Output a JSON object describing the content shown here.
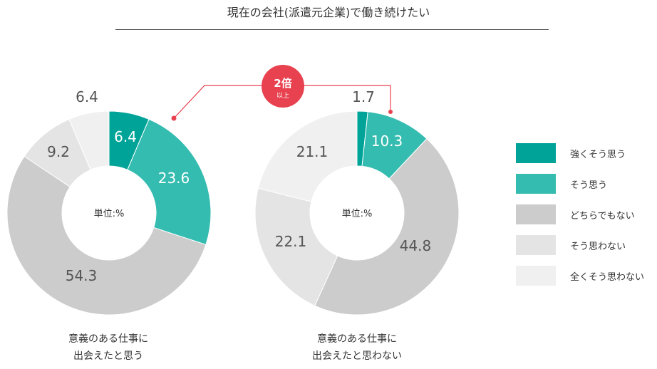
{
  "title": "現在の会社(派遣元企業)で働き続けたい",
  "chart_data": {
    "type": "donut",
    "title": "現在の会社(派遣元企業)で働き続けたい",
    "unit_label": "単位:%",
    "categories": [
      "強くそう思う",
      "そう思う",
      "どちらでもない",
      "そう思わない",
      "全くそう思わない"
    ],
    "colors": [
      "#00a398",
      "#35bcb0",
      "#cccccc",
      "#e4e4e4",
      "#f0f0f0"
    ],
    "charts": [
      {
        "caption": [
          "意義のある仕事に",
          "出会えたと思う"
        ],
        "values": [
          6.4,
          23.6,
          54.3,
          9.2,
          6.4
        ]
      },
      {
        "caption": [
          "意義のある仕事に",
          "出会えたと思わない"
        ],
        "values": [
          1.7,
          10.3,
          44.8,
          22.1,
          21.1
        ]
      }
    ],
    "annotation": {
      "big": "2倍",
      "small": "以上"
    }
  }
}
